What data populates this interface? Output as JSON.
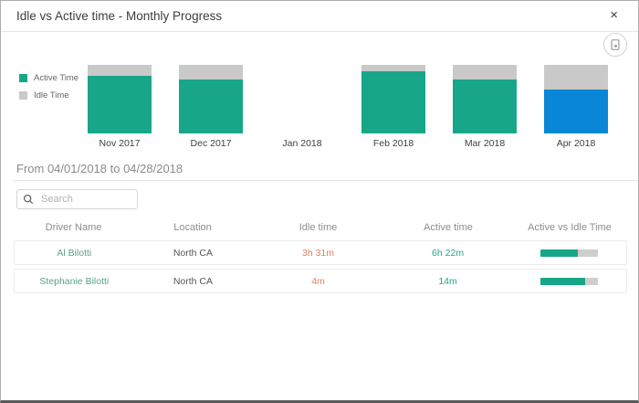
{
  "modal": {
    "title": "Idle vs Active time - Monthly Progress",
    "close_glyph": "×"
  },
  "legend": [
    {
      "label": "Active Time",
      "color": "#18a689"
    },
    {
      "label": "Idle Time",
      "color": "#c9c9c9"
    }
  ],
  "chart_data": {
    "type": "bar",
    "stacked": true,
    "title": "Idle vs Active time - Monthly Progress",
    "categories": [
      "Nov 2017",
      "Dec 2017",
      "Jan 2018",
      "Feb 2018",
      "Mar 2018",
      "Apr 2018"
    ],
    "series": [
      {
        "name": "Active Time",
        "values": [
          84,
          79,
          0,
          91,
          79,
          64
        ]
      },
      {
        "name": "Idle Time",
        "values": [
          16,
          21,
          0,
          9,
          21,
          36
        ]
      }
    ],
    "selected_category": "Apr 2018",
    "legend_position": "left",
    "ylim": [
      0,
      100
    ],
    "grid": false
  },
  "filter": {
    "heading": "From 04/01/2018 to 04/28/2018"
  },
  "search": {
    "placeholder": "Search"
  },
  "table": {
    "columns": [
      "Driver Name",
      "Location",
      "Idle time",
      "Active time",
      "Active vs Idle Time"
    ],
    "rows": [
      {
        "driver": "Al Bilotti",
        "location": "North CA",
        "idle_time": "3h 31m",
        "active_time": "6h 22m",
        "active_pct": 65
      },
      {
        "driver": "Stephanie Bilotti",
        "location": "North CA",
        "idle_time": "4m",
        "active_time": "14m",
        "active_pct": 78
      }
    ]
  },
  "colors": {
    "active": "#18a689",
    "idle": "#c9c9c9",
    "selected": "#0a86d6",
    "idle_text": "#e0825f",
    "active_text": "#26a38a",
    "driver_text": "#5aa18f",
    "bar_track": "#cecece"
  }
}
